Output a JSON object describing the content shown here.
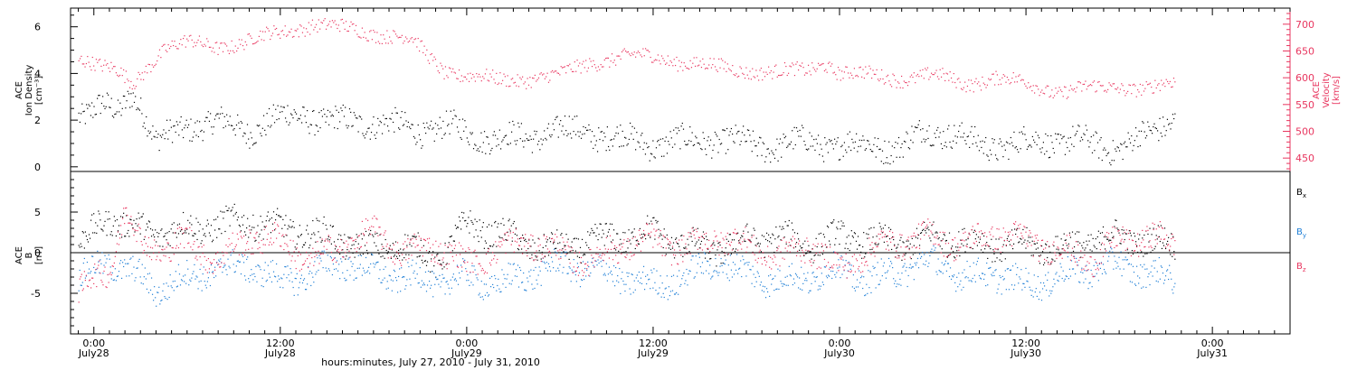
{
  "colors": {
    "black": "#000000",
    "pink": "#e8365f",
    "blue": "#1f7fd6"
  },
  "xaxis": {
    "title": "hours:minutes, July 27, 2010 - July 31, 2010",
    "ticks": [
      {
        "t": 0,
        "time": "0:00",
        "date": "July28"
      },
      {
        "t": 12,
        "time": "12:00",
        "date": "July28"
      },
      {
        "t": 24,
        "time": "0:00",
        "date": "July29"
      },
      {
        "t": 36,
        "time": "12:00",
        "date": "July29"
      },
      {
        "t": 48,
        "time": "0:00",
        "date": "July30"
      },
      {
        "t": 60,
        "time": "12:00",
        "date": "July30"
      },
      {
        "t": 72,
        "time": "0:00",
        "date": "July31"
      }
    ],
    "range_hours": [
      -1.5,
      77
    ]
  },
  "chart_data": [
    {
      "type": "scatter",
      "panel": "top",
      "ylabel": [
        "ACE",
        "Ion Density",
        "[cm⁻³]"
      ],
      "y2label": [
        "ACE",
        "Velocity",
        "[km/s]"
      ],
      "ylim": [
        -0.2,
        6.8
      ],
      "y2lim": [
        425,
        730
      ],
      "yticks": [
        0,
        2,
        4,
        6
      ],
      "y2ticks": [
        450,
        500,
        550,
        600,
        650,
        700
      ],
      "series": [
        {
          "axis": "left",
          "color": "#000000",
          "x": [
            -0.9,
            0.5,
            1.5,
            2.4,
            3.0,
            4.0,
            6.0,
            8.0,
            10.0,
            12.0,
            13.5,
            15.0,
            17.0,
            19.0,
            21.0,
            23.0,
            24.5,
            26.0,
            28.0,
            30.0,
            32.0,
            34.0,
            36.0,
            38.0,
            40.0,
            42.0,
            44.0,
            46.0,
            48.0,
            50.0,
            52.0,
            53.5,
            55.0,
            57.0,
            59.0,
            61.0,
            63.0,
            65.0,
            66.5,
            68.0,
            69.5
          ],
          "y": [
            2.4,
            2.6,
            2.2,
            3.3,
            2.7,
            1.0,
            1.8,
            1.9,
            1.6,
            2.1,
            2.3,
            1.9,
            2.0,
            1.8,
            1.6,
            1.7,
            1.4,
            1.2,
            1.3,
            1.6,
            1.5,
            1.2,
            1.0,
            1.1,
            1.2,
            1.0,
            0.9,
            1.1,
            0.9,
            1.0,
            0.8,
            1.6,
            1.5,
            0.9,
            1.0,
            1.1,
            1.2,
            0.8,
            1.0,
            1.4,
            2.2
          ]
        },
        {
          "axis": "right",
          "color": "#e8365f",
          "x": [
            -0.9,
            0.5,
            1.5,
            2.5,
            3.5,
            4.5,
            6.0,
            8.0,
            9.5,
            11.0,
            12.5,
            14.0,
            15.5,
            17.0,
            19.0,
            20.5,
            21.5,
            22.5,
            24.0,
            26.0,
            28.0,
            30.0,
            32.0,
            34.0,
            36.0,
            38.0,
            40.0,
            42.0,
            44.0,
            46.0,
            47.0,
            48.0,
            50.0,
            52.0,
            54.0,
            56.0,
            58.0,
            60.0,
            62.0,
            64.0,
            66.0,
            68.0,
            69.5
          ],
          "y": [
            640,
            620,
            610,
            590,
            625,
            655,
            665,
            660,
            665,
            678,
            690,
            700,
            695,
            690,
            680,
            670,
            640,
            615,
            605,
            595,
            600,
            605,
            630,
            640,
            640,
            630,
            620,
            615,
            610,
            615,
            630,
            610,
            605,
            600,
            605,
            590,
            600,
            590,
            575,
            580,
            585,
            580,
            590
          ]
        }
      ]
    },
    {
      "type": "scatter",
      "panel": "bottom",
      "ylabel": [
        "ACE",
        "B",
        "[nT]"
      ],
      "ylim": [
        -10,
        10
      ],
      "yticks": [
        -5,
        0,
        5
      ],
      "zero_line": true,
      "legend": [
        {
          "label": "B",
          "sub": "x",
          "color": "#000000"
        },
        {
          "label": "B",
          "sub": "y",
          "color": "#1f7fd6"
        },
        {
          "label": "B",
          "sub": "z",
          "color": "#e8365f"
        }
      ],
      "series": [
        {
          "name": "Bx",
          "color": "#000000",
          "x": [
            -0.9,
            1.0,
            2.5,
            4.0,
            6.0,
            8.0,
            10.0,
            12.0,
            14.0,
            16.0,
            18.0,
            20.0,
            22.0,
            24.0,
            26.0,
            28.0,
            30.0,
            32.0,
            34.0,
            36.0,
            38.0,
            40.0,
            42.0,
            44.0,
            46.0,
            48.0,
            50.0,
            52.0,
            54.0,
            56.0,
            58.0,
            60.0,
            62.0,
            64.0,
            66.0,
            68.0,
            69.5
          ],
          "y": [
            1.0,
            4.5,
            3.0,
            2.5,
            3.0,
            3.5,
            4.0,
            3.0,
            2.5,
            1.5,
            0.5,
            1.0,
            -1.0,
            3.5,
            2.5,
            1.0,
            0.5,
            1.5,
            2.0,
            2.5,
            1.0,
            0.5,
            1.5,
            2.0,
            1.0,
            2.0,
            1.5,
            1.0,
            2.0,
            1.5,
            1.0,
            1.0,
            0.5,
            1.5,
            2.0,
            1.5,
            1.0
          ]
        },
        {
          "name": "By",
          "color": "#1f7fd6",
          "x": [
            -0.9,
            1.0,
            2.5,
            4.0,
            6.0,
            8.0,
            10.0,
            12.0,
            14.0,
            16.0,
            18.0,
            20.0,
            22.0,
            24.0,
            26.0,
            28.0,
            30.0,
            32.0,
            34.0,
            36.0,
            38.0,
            40.0,
            42.0,
            44.0,
            46.0,
            48.0,
            50.0,
            52.0,
            54.0,
            56.0,
            58.0,
            60.0,
            62.0,
            64.0,
            66.0,
            68.0,
            69.5
          ],
          "y": [
            -3.0,
            -1.0,
            -2.5,
            -4.5,
            -3.0,
            -2.0,
            -1.5,
            -3.5,
            -2.5,
            -1.0,
            -2.5,
            -3.0,
            -3.5,
            -3.0,
            -4.0,
            -2.5,
            -1.5,
            -2.0,
            -3.0,
            -4.0,
            -3.0,
            -1.0,
            -2.5,
            -3.5,
            -3.0,
            -2.0,
            -3.5,
            -2.0,
            -1.0,
            -3.0,
            -2.5,
            -4.0,
            -3.0,
            -2.0,
            -1.5,
            -2.5,
            -3.5
          ]
        },
        {
          "name": "Bz",
          "color": "#e8365f",
          "x": [
            -0.9,
            1.0,
            2.0,
            3.0,
            4.5,
            6.0,
            8.0,
            10.0,
            12.0,
            14.0,
            16.0,
            18.0,
            20.0,
            22.0,
            24.0,
            26.0,
            28.0,
            30.0,
            32.0,
            34.0,
            36.0,
            38.0,
            40.0,
            42.0,
            44.0,
            46.0,
            48.0,
            50.0,
            52.0,
            54.0,
            56.0,
            58.0,
            60.0,
            62.0,
            64.0,
            66.0,
            68.0,
            69.5
          ],
          "y": [
            -4.5,
            -2.0,
            5.5,
            1.0,
            0.5,
            1.5,
            -1.0,
            2.0,
            1.5,
            -1.0,
            1.0,
            2.5,
            0.0,
            1.0,
            -1.5,
            0.5,
            1.5,
            0.0,
            -1.0,
            1.0,
            1.5,
            0.5,
            2.0,
            1.0,
            -0.5,
            1.0,
            -2.0,
            0.5,
            1.5,
            2.0,
            1.0,
            2.5,
            1.5,
            0.5,
            -1.0,
            1.5,
            2.0,
            1.0
          ]
        }
      ]
    }
  ]
}
